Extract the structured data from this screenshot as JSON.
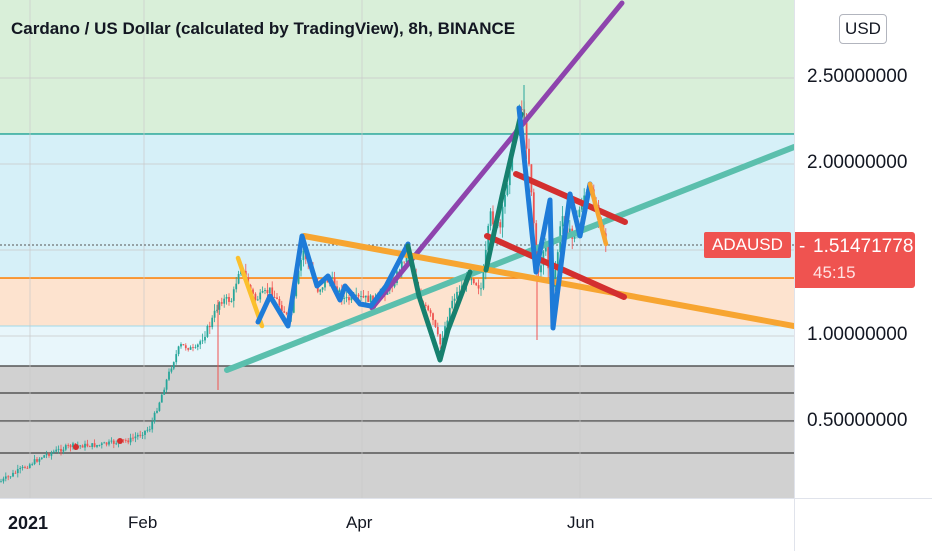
{
  "header": {
    "title": "Cardano / US Dollar (calculated by TradingView), 8h, BINANCE"
  },
  "axis": {
    "currency_button": "USD",
    "y_ticks": [
      "2.50000000",
      "2.00000000",
      "1.00000000",
      "0.50000000"
    ],
    "x_ticks": [
      "2021",
      "Feb",
      "Apr",
      "Jun"
    ]
  },
  "last_price": {
    "symbol": "ADAUSD",
    "value": "1.51471778",
    "countdown": "45:15",
    "color": "#ef5350"
  },
  "colors": {
    "up": "#26a69a",
    "down": "#ef5350",
    "zone_green": "#d9efd9",
    "zone_blue": "#d6f0f8",
    "zone_orange": "#fde3cf",
    "zone_gray": "#d1d1d1",
    "trend_purple": "#8e44ad",
    "trend_teal": "#5bbfad",
    "trend_orange": "#f7a531",
    "trend_red": "#d32f2f",
    "wave_blue": "#1e7bd8",
    "wave_green": "#16806e"
  },
  "chart_data": {
    "type": "candlestick",
    "symbol": "ADAUSD",
    "interval": "8h",
    "exchange": "BINANCE",
    "x_ticks": [
      "2021",
      "Feb",
      "Apr",
      "Jun"
    ],
    "y_ticks": [
      2.5,
      2.0,
      1.0,
      0.5
    ],
    "last_price": 1.51471778,
    "price_path": [
      {
        "t": "2021",
        "price": 0.18
      },
      {
        "t": "Jan mid",
        "price": 0.3
      },
      {
        "t": "Feb",
        "price": 0.42
      },
      {
        "t": "Feb mid",
        "price": 1.0
      },
      {
        "t": "Feb late",
        "price": 1.35
      },
      {
        "t": "Mar",
        "price": 1.15
      },
      {
        "t": "Mar mid",
        "price": 1.3
      },
      {
        "t": "Apr",
        "price": 1.2
      },
      {
        "t": "Apr mid",
        "price": 1.45
      },
      {
        "t": "Apr late",
        "price": 1.2
      },
      {
        "t": "May",
        "price": 1.7
      },
      {
        "t": "May mid",
        "price": 2.4
      },
      {
        "t": "May late",
        "price": 1.4
      },
      {
        "t": "Jun",
        "price": 1.75
      },
      {
        "t": "Jun early",
        "price": 1.51
      }
    ]
  }
}
